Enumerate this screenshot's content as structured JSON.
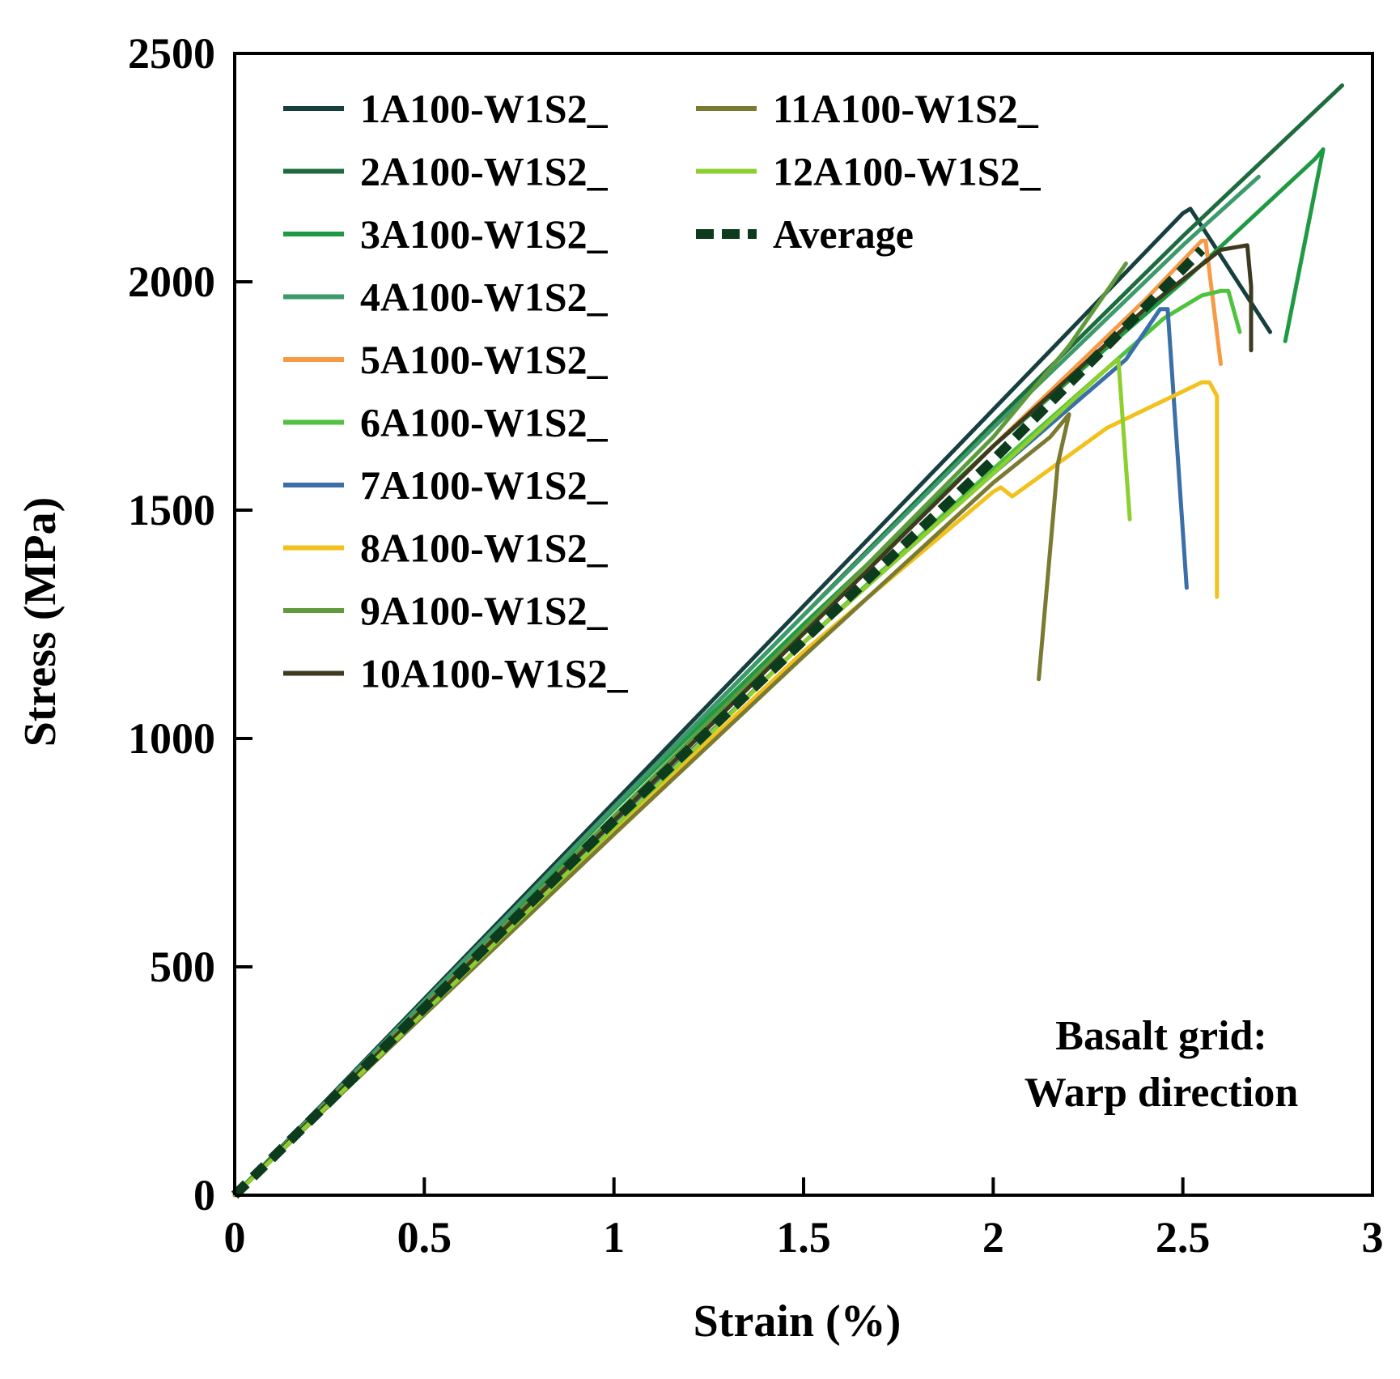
{
  "chart_data": {
    "type": "line",
    "title": "",
    "xlabel": "Strain (%)",
    "ylabel": "Stress (MPa)",
    "xlim": [
      0,
      3
    ],
    "ylim": [
      0,
      2500
    ],
    "x_ticks": [
      0,
      0.5,
      1,
      1.5,
      2,
      2.5,
      3
    ],
    "x_tick_labels": [
      "0",
      "0.5",
      "1",
      "1.5",
      "2",
      "2.5",
      "3"
    ],
    "y_ticks": [
      0,
      500,
      1000,
      1500,
      2000,
      2500
    ],
    "y_tick_labels": [
      "0",
      "500",
      "1000",
      "1500",
      "2000",
      "2500"
    ],
    "grid": false,
    "legend_position": "top-left",
    "annotation": [
      "Basalt grid:",
      "Warp direction"
    ],
    "series": [
      {
        "name": "1A100-W1S2_",
        "color": "#173f3f",
        "dashed": false,
        "x": [
          0,
          0.5,
          1.0,
          1.5,
          2.0,
          2.5,
          2.52,
          2.73
        ],
        "y": [
          0,
          430,
          860,
          1290,
          1720,
          2150,
          2160,
          1890
        ]
      },
      {
        "name": "2A100-W1S2_",
        "color": "#1e6b3e",
        "dashed": false,
        "x": [
          0,
          0.5,
          1.0,
          1.5,
          2.0,
          2.5,
          2.92
        ],
        "y": [
          0,
          425,
          850,
          1270,
          1690,
          2100,
          2430
        ]
      },
      {
        "name": "3A100-W1S2_",
        "color": "#1f9a42",
        "dashed": false,
        "x": [
          0,
          0.5,
          1.0,
          1.5,
          2.0,
          2.5,
          2.85,
          2.87,
          2.77
        ],
        "y": [
          0,
          420,
          845,
          1250,
          1640,
          2000,
          2270,
          2290,
          1870
        ]
      },
      {
        "name": "4A100-W1S2_",
        "color": "#3e9a6b",
        "dashed": false,
        "x": [
          0,
          0.5,
          1.0,
          1.5,
          2.0,
          2.5,
          2.7
        ],
        "y": [
          0,
          425,
          850,
          1270,
          1680,
          2080,
          2230
        ]
      },
      {
        "name": "5A100-W1S2_",
        "color": "#f79a45",
        "dashed": false,
        "x": [
          0,
          0.5,
          1.0,
          1.5,
          2.0,
          2.4,
          2.55,
          2.56,
          2.6
        ],
        "y": [
          0,
          410,
          820,
          1230,
          1640,
          1960,
          2090,
          2090,
          1820
        ]
      },
      {
        "name": "6A100-W1S2_",
        "color": "#4fc23f",
        "dashed": false,
        "x": [
          0,
          0.5,
          1.0,
          1.5,
          2.0,
          2.45,
          2.55,
          2.6,
          2.62,
          2.65
        ],
        "y": [
          0,
          405,
          810,
          1210,
          1590,
          1920,
          1970,
          1980,
          1980,
          1890
        ]
      },
      {
        "name": "7A100-W1S2_",
        "color": "#3a6fa8",
        "dashed": false,
        "x": [
          0,
          0.5,
          1.0,
          1.5,
          2.0,
          2.35,
          2.44,
          2.46,
          2.51
        ],
        "y": [
          0,
          405,
          810,
          1210,
          1580,
          1830,
          1940,
          1940,
          1330
        ]
      },
      {
        "name": "8A100-W1S2_",
        "color": "#f2c11d",
        "dashed": false,
        "x": [
          0,
          0.5,
          1.0,
          1.5,
          2.0,
          2.02,
          2.05,
          2.3,
          2.55,
          2.57,
          2.59,
          2.59
        ],
        "y": [
          0,
          400,
          800,
          1190,
          1540,
          1550,
          1530,
          1680,
          1780,
          1780,
          1750,
          1310
        ]
      },
      {
        "name": "9A100-W1S2_",
        "color": "#5f9a3c",
        "dashed": false,
        "x": [
          0,
          0.5,
          1.0,
          1.5,
          2.0,
          2.2,
          2.35
        ],
        "y": [
          0,
          415,
          830,
          1240,
          1660,
          1860,
          2040
        ]
      },
      {
        "name": "10A100-W1S2_",
        "color": "#3e3a1f",
        "dashed": false,
        "x": [
          0,
          0.5,
          1.0,
          1.5,
          2.0,
          2.4,
          2.6,
          2.67,
          2.68,
          2.68
        ],
        "y": [
          0,
          410,
          820,
          1230,
          1640,
          1940,
          2070,
          2080,
          1990,
          1850
        ]
      },
      {
        "name": "11A100-W1S2_",
        "color": "#7a7a32",
        "dashed": false,
        "x": [
          0,
          0.5,
          1.0,
          1.5,
          2.0,
          2.15,
          2.2,
          2.17,
          2.12
        ],
        "y": [
          0,
          395,
          790,
          1180,
          1560,
          1660,
          1710,
          1600,
          1130
        ]
      },
      {
        "name": "12A100-W1S2_",
        "color": "#8ccf2e",
        "dashed": false,
        "x": [
          0,
          0.5,
          1.0,
          1.5,
          2.0,
          2.3,
          2.33,
          2.36
        ],
        "y": [
          0,
          400,
          805,
          1210,
          1580,
          1810,
          1830,
          1480
        ]
      },
      {
        "name": "Average",
        "color": "#0d3b1e",
        "dashed": true,
        "x": [
          0,
          0.5,
          1.0,
          1.5,
          2.0,
          2.3,
          2.55
        ],
        "y": [
          0,
          410,
          820,
          1215,
          1610,
          1860,
          2070
        ]
      }
    ]
  }
}
